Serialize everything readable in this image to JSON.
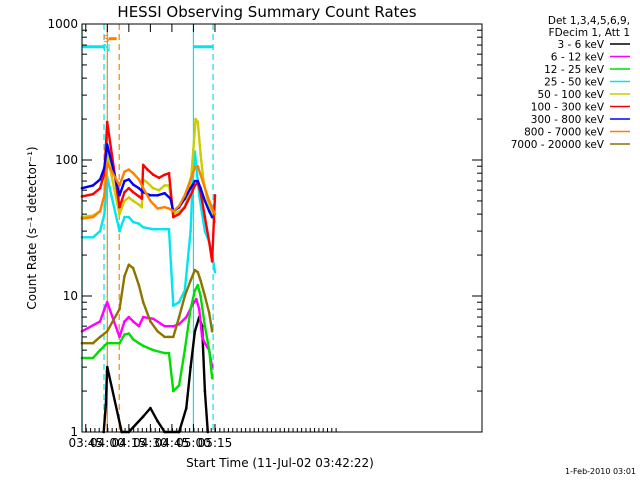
{
  "chart_data": {
    "type": "line",
    "title": "HESSI Observing Summary Count Rates",
    "xlabel": "Start Time (11-Jul-02 03:42:22)",
    "ylabel": "Count Rate (s⁻¹ detector⁻¹)",
    "yscale": "log",
    "ylim": [
      1,
      1000
    ],
    "xlim_minutes": [
      42.37,
      321.0
    ],
    "x_ticks": [
      {
        "min": 45,
        "label": "03:45"
      },
      {
        "min": 60,
        "label": "04:00"
      },
      {
        "min": 75,
        "label": "04:15"
      },
      {
        "min": 90,
        "label": "04:30"
      },
      {
        "min": 105,
        "label": "04:45"
      },
      {
        "min": 120,
        "label": "05:00"
      },
      {
        "min": 135,
        "label": "05:15"
      }
    ],
    "y_ticks": [
      {
        "value": 1,
        "label": "1"
      },
      {
        "value": 10,
        "label": "10"
      },
      {
        "value": 100,
        "label": "100"
      },
      {
        "value": 1000,
        "label": "1000"
      }
    ],
    "legend_header": [
      "Det 1,3,4,5,6,9,",
      "FDecim 1, Att 1"
    ],
    "legend_position": "outside-right",
    "grid": false,
    "series": [
      {
        "name": "3 - 6 keV",
        "color": "#000000",
        "points": [
          [
            57.5,
            1
          ],
          [
            59.0,
            1.6
          ],
          [
            59.8,
            2.8
          ],
          [
            60.0,
            3.0
          ],
          [
            70,
            1
          ],
          [
            75,
            1
          ],
          [
            85,
            1.3
          ],
          [
            90,
            1.5
          ],
          [
            95,
            1.2
          ],
          [
            100,
            1
          ],
          [
            110,
            1
          ],
          [
            115,
            1.5
          ],
          [
            118,
            3.0
          ],
          [
            121,
            5.5
          ],
          [
            124,
            7.0
          ],
          [
            126,
            6.0
          ],
          [
            128,
            2.0
          ],
          [
            130,
            1
          ]
        ]
      },
      {
        "name": "6 - 12 keV",
        "color": "#ff00ff",
        "points": [
          [
            42.4,
            5.5
          ],
          [
            55,
            6.5
          ],
          [
            58,
            8.0
          ],
          [
            59.9,
            9.0
          ],
          [
            68.5,
            5.0
          ],
          [
            72,
            6.5
          ],
          [
            75,
            7.0
          ],
          [
            78,
            6.5
          ],
          [
            82,
            6.0
          ],
          [
            85,
            7.0
          ],
          [
            92,
            6.8
          ],
          [
            100,
            6.0
          ],
          [
            103,
            6.0
          ],
          [
            106,
            6.0
          ],
          [
            110,
            6.2
          ],
          [
            115,
            7.0
          ],
          [
            119,
            8.5
          ],
          [
            122,
            9.5
          ],
          [
            124,
            8.0
          ],
          [
            126,
            5.0
          ],
          [
            128,
            4.5
          ],
          [
            131,
            4.0
          ],
          [
            133,
            3.0
          ]
        ]
      },
      {
        "name": "12 - 25 keV",
        "color": "#00dd00",
        "points": [
          [
            42.4,
            3.5
          ],
          [
            50,
            3.5
          ],
          [
            55,
            4.0
          ],
          [
            59.9,
            4.5
          ],
          [
            68.5,
            4.5
          ],
          [
            72,
            5.2
          ],
          [
            75,
            5.3
          ],
          [
            78,
            4.8
          ],
          [
            82,
            4.5
          ],
          [
            85,
            4.3
          ],
          [
            92,
            4.0
          ],
          [
            100,
            3.8
          ],
          [
            103,
            3.8
          ],
          [
            106,
            2.0
          ],
          [
            110,
            2.2
          ],
          [
            114,
            4.0
          ],
          [
            118,
            8.0
          ],
          [
            121,
            11.0
          ],
          [
            123,
            12.0
          ],
          [
            125,
            10.0
          ],
          [
            128,
            6.0
          ],
          [
            131,
            4.0
          ],
          [
            133,
            2.5
          ]
        ]
      },
      {
        "name": "25 - 50 keV",
        "color": "#00e5ee",
        "points": [
          [
            42.4,
            27
          ],
          [
            50,
            27
          ],
          [
            55,
            30
          ],
          [
            58,
            40
          ],
          [
            59.9,
            75
          ],
          [
            68.5,
            30
          ],
          [
            72,
            38
          ],
          [
            75,
            38
          ],
          [
            78,
            35
          ],
          [
            82,
            34
          ],
          [
            85,
            32
          ],
          [
            92,
            31
          ],
          [
            100,
            31
          ],
          [
            103,
            31
          ],
          [
            106,
            8.5
          ],
          [
            110,
            9.0
          ],
          [
            114,
            11
          ],
          [
            118,
            30
          ],
          [
            119.5,
            70
          ],
          [
            121,
            115
          ],
          [
            122.5,
            80
          ],
          [
            124,
            55
          ],
          [
            126,
            40
          ],
          [
            128,
            30
          ],
          [
            131,
            25
          ],
          [
            133,
            20
          ],
          [
            135,
            15
          ]
        ]
      },
      {
        "name": "50 - 100 keV",
        "color": "#cccc00",
        "points": [
          [
            42.4,
            38
          ],
          [
            50,
            39
          ],
          [
            55,
            42
          ],
          [
            58,
            55
          ],
          [
            59.9,
            110
          ],
          [
            68.5,
            40
          ],
          [
            72,
            50
          ],
          [
            75,
            53
          ],
          [
            78,
            50
          ],
          [
            82,
            47
          ],
          [
            84,
            45
          ],
          [
            85,
            72
          ],
          [
            88,
            68
          ],
          [
            92,
            62
          ],
          [
            96,
            60
          ],
          [
            100,
            65
          ],
          [
            103,
            65
          ],
          [
            106,
            40
          ],
          [
            110,
            42
          ],
          [
            114,
            45
          ],
          [
            118,
            65
          ],
          [
            120,
            120
          ],
          [
            121.5,
            200
          ],
          [
            123,
            190
          ],
          [
            125,
            110
          ],
          [
            127,
            70
          ],
          [
            130,
            50
          ],
          [
            133,
            40
          ],
          [
            135,
            35
          ]
        ]
      },
      {
        "name": "100 - 300 keV",
        "color": "#ff0000",
        "points": [
          [
            42.4,
            54
          ],
          [
            50,
            56
          ],
          [
            55,
            62
          ],
          [
            58,
            80
          ],
          [
            59.9,
            190
          ],
          [
            68.5,
            45
          ],
          [
            72,
            58
          ],
          [
            75,
            62
          ],
          [
            78,
            58
          ],
          [
            82,
            54
          ],
          [
            84,
            52
          ],
          [
            85,
            92
          ],
          [
            88,
            85
          ],
          [
            92,
            78
          ],
          [
            96,
            74
          ],
          [
            100,
            78
          ],
          [
            103,
            80
          ],
          [
            106,
            38
          ],
          [
            110,
            40
          ],
          [
            114,
            45
          ],
          [
            118,
            55
          ],
          [
            121,
            65
          ],
          [
            123,
            68
          ],
          [
            125,
            58
          ],
          [
            128,
            38
          ],
          [
            131,
            25
          ],
          [
            133,
            18
          ],
          [
            135,
            55
          ]
        ]
      },
      {
        "name": "300 - 800 keV",
        "color": "#0000ff",
        "points": [
          [
            42.4,
            62
          ],
          [
            50,
            65
          ],
          [
            55,
            72
          ],
          [
            58,
            88
          ],
          [
            59.9,
            130
          ],
          [
            68.5,
            55
          ],
          [
            72,
            70
          ],
          [
            75,
            72
          ],
          [
            78,
            66
          ],
          [
            82,
            62
          ],
          [
            85,
            58
          ],
          [
            90,
            55
          ],
          [
            95,
            55
          ],
          [
            100,
            57
          ],
          [
            104,
            52
          ],
          [
            106,
            42
          ],
          [
            110,
            45
          ],
          [
            114,
            52
          ],
          [
            118,
            62
          ],
          [
            121,
            70
          ],
          [
            123,
            70
          ],
          [
            125,
            62
          ],
          [
            128,
            50
          ],
          [
            131,
            42
          ],
          [
            133,
            38
          ]
        ]
      },
      {
        "name": "800 - 7000 keV",
        "color": "#ff8000",
        "points": [
          [
            42.4,
            37
          ],
          [
            50,
            38
          ],
          [
            55,
            42
          ],
          [
            58,
            55
          ],
          [
            59.9,
            95
          ],
          [
            68.5,
            65
          ],
          [
            72,
            82
          ],
          [
            75,
            85
          ],
          [
            78,
            80
          ],
          [
            82,
            72
          ],
          [
            85,
            62
          ],
          [
            90,
            50
          ],
          [
            95,
            44
          ],
          [
            100,
            45
          ],
          [
            103,
            44
          ],
          [
            106,
            42
          ],
          [
            110,
            46
          ],
          [
            114,
            55
          ],
          [
            118,
            72
          ],
          [
            121,
            88
          ],
          [
            123,
            90
          ],
          [
            125,
            78
          ],
          [
            128,
            62
          ],
          [
            131,
            50
          ],
          [
            134,
            42
          ],
          [
            135,
            40
          ]
        ]
      },
      {
        "name": "7000 - 20000 keV",
        "color": "#8b7500",
        "points": [
          [
            42.4,
            4.5
          ],
          [
            50,
            4.5
          ],
          [
            55,
            5.0
          ],
          [
            59.9,
            5.5
          ],
          [
            68.5,
            8.0
          ],
          [
            72,
            14
          ],
          [
            75,
            17
          ],
          [
            78,
            16
          ],
          [
            82,
            12
          ],
          [
            85,
            9.0
          ],
          [
            90,
            6.5
          ],
          [
            95,
            5.5
          ],
          [
            100,
            5.0
          ],
          [
            103,
            5.0
          ],
          [
            106,
            5.0
          ],
          [
            110,
            7.0
          ],
          [
            114,
            10
          ],
          [
            118,
            13
          ],
          [
            121,
            15.5
          ],
          [
            123,
            15
          ],
          [
            125,
            13
          ],
          [
            128,
            10
          ],
          [
            131,
            7.5
          ],
          [
            133,
            5.5
          ]
        ]
      }
    ],
    "annotations": [
      {
        "type": "vline",
        "color": "#00e5ee",
        "style": "solid",
        "x": 42.4
      },
      {
        "type": "vline",
        "color": "#00e5ee",
        "style": "dashed",
        "x": 57.7
      },
      {
        "type": "vline",
        "color": "#ff8000",
        "style": "solid",
        "x": 60.0
      },
      {
        "type": "vline",
        "color": "#ff8000",
        "style": "dashed",
        "x": 68.3
      },
      {
        "type": "vline",
        "color": "#00e5ee",
        "style": "solid",
        "x": 120.0
      },
      {
        "type": "vline",
        "color": "#00e5ee",
        "style": "dashed",
        "x": 133.7
      },
      {
        "type": "hline",
        "color": "#00e5ee",
        "x0": 42.4,
        "x1": 57.7,
        "y": 680
      },
      {
        "type": "hline",
        "color": "#ff8000",
        "x0": 61.0,
        "x1": 66.5,
        "y": 780
      },
      {
        "type": "hline",
        "color": "#00e5ee",
        "x0": 120.0,
        "x1": 133.7,
        "y": 680
      }
    ],
    "markers": [
      {
        "text": "S",
        "color": "#ff8000",
        "x": 59.3
      },
      {
        "text": "N",
        "color": "#00e5ee",
        "x": 59.6
      }
    ]
  },
  "footer_stamp": "1-Feb-2010 03:01"
}
